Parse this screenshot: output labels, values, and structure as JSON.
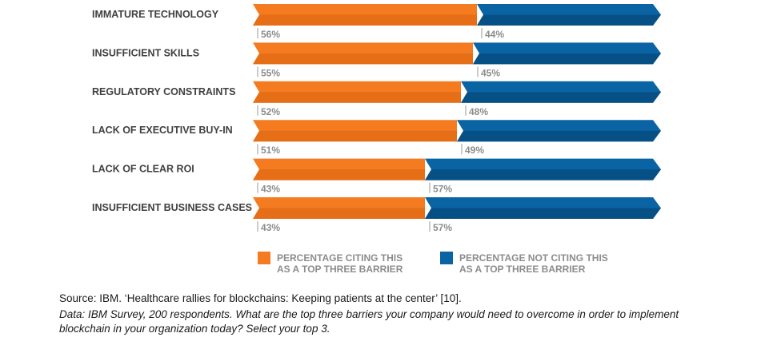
{
  "chart_data": {
    "type": "bar",
    "stacked": true,
    "orientation": "horizontal",
    "categories": [
      "IMMATURE TECHNOLOGY",
      "INSUFFICIENT SKILLS",
      "REGULATORY CONSTRAINTS",
      "LACK OF EXECUTIVE BUY-IN",
      "LACK OF CLEAR ROI",
      "INSUFFICIENT BUSINESS CASES"
    ],
    "series": [
      {
        "name": "PERCENTAGE CITING THIS AS A TOP THREE BARRIER",
        "legend_lines": [
          "PERCENTAGE CITING THIS",
          "AS A TOP THREE BARRIER"
        ],
        "color": "#f47b20",
        "color_dark": "#d9650f",
        "values": [
          56,
          55,
          52,
          51,
          43,
          43
        ],
        "labels": [
          "56%",
          "55%",
          "52%",
          "51%",
          "43%",
          "43%"
        ]
      },
      {
        "name": "PERCENTAGE NOT CITING THIS AS A TOP THREE BARRIER",
        "legend_lines": [
          "PERCENTAGE NOT CITING THIS",
          "AS A TOP THREE BARRIER"
        ],
        "color": "#0a64a4",
        "color_dark": "#064b7d",
        "values": [
          44,
          45,
          48,
          49,
          57,
          57
        ],
        "labels": [
          "44%",
          "45%",
          "48%",
          "49%",
          "57%",
          "57%"
        ]
      }
    ],
    "xlim": [
      0,
      100
    ],
    "grid": false,
    "legend": "bottom"
  },
  "caption": {
    "source": "Source: IBM. ‘Healthcare rallies for blockchains: Keeping patients at the center’ [10].",
    "note": "Data: IBM Survey, 200 respondents. What are the top three barriers your company would need to overcome in order to implement blockchain in your organization today? Select your top 3."
  }
}
